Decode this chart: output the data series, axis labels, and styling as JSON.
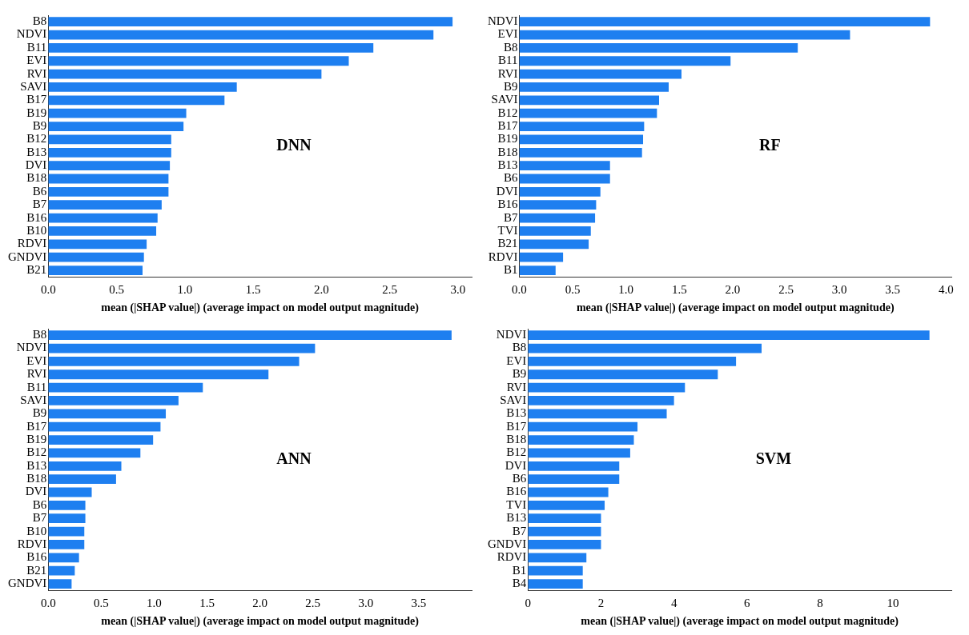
{
  "chart_data": [
    {
      "type": "bar",
      "orientation": "horizontal",
      "categories": [
        "B8",
        "NDVI",
        "B11",
        "EVI",
        "RVI",
        "SAVI",
        "B17",
        "B19",
        "B9",
        "B12",
        "B13",
        "DVI",
        "B18",
        "B6",
        "B7",
        "B16",
        "B10",
        "RDVI",
        "GNDVI",
        "B21"
      ],
      "values": [
        2.96,
        2.82,
        2.38,
        2.2,
        2.0,
        1.38,
        1.29,
        1.01,
        0.99,
        0.9,
        0.9,
        0.89,
        0.88,
        0.88,
        0.83,
        0.8,
        0.79,
        0.72,
        0.7,
        0.69
      ],
      "color": "#1e7ff0",
      "xlim": [
        0,
        3.1
      ],
      "xticks": [
        {
          "value": 0,
          "label": "0.0"
        },
        {
          "value": 0.5,
          "label": "0.5"
        },
        {
          "value": 1,
          "label": "1.0"
        },
        {
          "value": 1.5,
          "label": "1.5"
        },
        {
          "value": 2,
          "label": "2.0"
        },
        {
          "value": 2.5,
          "label": "2.5"
        },
        {
          "value": 3,
          "label": "3.0"
        }
      ],
      "xlabel": "mean (|SHAP value|) (average impact on model output magnitude)",
      "annotations": [
        "DNN"
      ],
      "grid": false,
      "legend": false
    },
    {
      "type": "bar",
      "orientation": "horizontal",
      "categories": [
        "NDVI",
        "EVI",
        "B8",
        "B11",
        "RVI",
        "B9",
        "SAVI",
        "B12",
        "B17",
        "B19",
        "B18",
        "B13",
        "B6",
        "DVI",
        "B16",
        "B7",
        "TVI",
        "B21",
        "RDVI",
        "B1"
      ],
      "values": [
        3.85,
        3.1,
        2.61,
        1.98,
        1.52,
        1.4,
        1.31,
        1.29,
        1.17,
        1.16,
        1.15,
        0.85,
        0.85,
        0.76,
        0.72,
        0.71,
        0.67,
        0.65,
        0.41,
        0.34
      ],
      "color": "#1e7ff0",
      "xlim": [
        0,
        4.05
      ],
      "xticks": [
        {
          "value": 0,
          "label": "0.0"
        },
        {
          "value": 0.5,
          "label": "0.5"
        },
        {
          "value": 1,
          "label": "1.0"
        },
        {
          "value": 1.5,
          "label": "1.5"
        },
        {
          "value": 2,
          "label": "2.0"
        },
        {
          "value": 2.5,
          "label": "2.5"
        },
        {
          "value": 3,
          "label": "3.0"
        },
        {
          "value": 3.5,
          "label": "3.5"
        },
        {
          "value": 4,
          "label": "4.0"
        }
      ],
      "xlabel": "mean (|SHAP value|) (average impact on model output magnitude)",
      "annotations": [
        "RF"
      ],
      "grid": false,
      "legend": false
    },
    {
      "type": "bar",
      "orientation": "horizontal",
      "categories": [
        "B8",
        "NDVI",
        "EVI",
        "RVI",
        "B11",
        "SAVI",
        "B9",
        "B17",
        "B19",
        "B12",
        "B13",
        "B18",
        "DVI",
        "B6",
        "B7",
        "B10",
        "RDVI",
        "B16",
        "B21",
        "GNDVI"
      ],
      "values": [
        3.81,
        2.52,
        2.37,
        2.08,
        1.46,
        1.23,
        1.11,
        1.06,
        0.99,
        0.87,
        0.69,
        0.64,
        0.41,
        0.35,
        0.35,
        0.34,
        0.34,
        0.29,
        0.25,
        0.22
      ],
      "color": "#1e7ff0",
      "xlim": [
        0,
        4.0
      ],
      "xticks": [
        {
          "value": 0,
          "label": "0.0"
        },
        {
          "value": 0.5,
          "label": "0.5"
        },
        {
          "value": 1,
          "label": "1.0"
        },
        {
          "value": 1.5,
          "label": "1.5"
        },
        {
          "value": 2,
          "label": "2.0"
        },
        {
          "value": 2.5,
          "label": "2.5"
        },
        {
          "value": 3,
          "label": "3.0"
        },
        {
          "value": 3.5,
          "label": "3.5"
        }
      ],
      "xlabel": "mean (|SHAP value|) (average impact on model output magnitude)",
      "annotations": [
        "ANN"
      ],
      "grid": false,
      "legend": false
    },
    {
      "type": "bar",
      "orientation": "horizontal",
      "categories": [
        "NDVI",
        "B8",
        "EVI",
        "B9",
        "RVI",
        "SAVI",
        "B13",
        "B17",
        "B18",
        "B12",
        "DVI",
        "B6",
        "B16",
        "TVI",
        "B13",
        "B7",
        "GNDVI",
        "RDVI",
        "B1",
        "B4"
      ],
      "values": [
        11.0,
        6.4,
        5.7,
        5.2,
        4.3,
        4.0,
        3.8,
        3.0,
        2.9,
        2.8,
        2.5,
        2.5,
        2.2,
        2.1,
        2.0,
        2.0,
        2.0,
        1.6,
        1.5,
        1.5
      ],
      "color": "#1e7ff0",
      "xlim": [
        0,
        11.6
      ],
      "xticks": [
        0,
        2,
        4,
        6,
        8,
        10
      ],
      "xlabel": "mean (|SHAP value|) (average impact on model output magnitude)",
      "annotations": [
        "SVM"
      ],
      "grid": false,
      "legend": false
    }
  ]
}
